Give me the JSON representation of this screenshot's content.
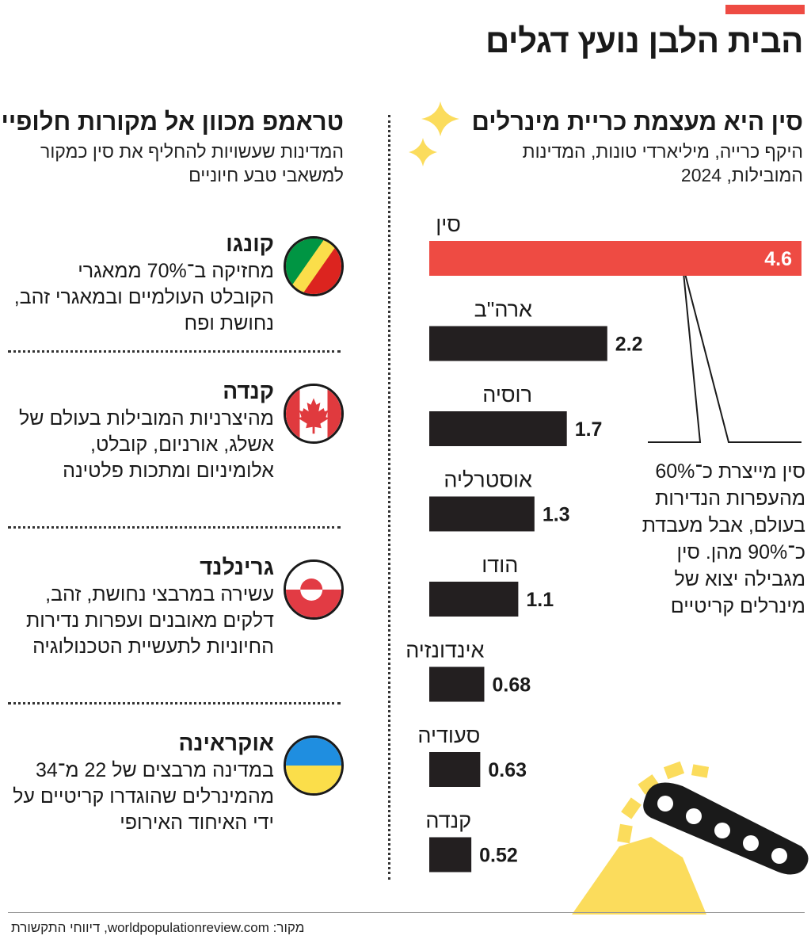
{
  "header": {
    "title": "הבית הלבן נועץ דגלים"
  },
  "chart_data": {
    "type": "bar",
    "title": "סין היא מעצמת כריית מינרלים",
    "subtitle": "היקף כרייה, מיליארדי טונות, המדינות המובילות, 2024",
    "categories": [
      "סין",
      "ארה\"ב",
      "רוסיה",
      "אוסטרליה",
      "הודו",
      "אינדונזיה",
      "סעודיה",
      "קנדה"
    ],
    "values": [
      4.6,
      2.2,
      1.7,
      1.3,
      1.1,
      0.68,
      0.63,
      0.52
    ],
    "value_labels": [
      "4.6",
      "2.2",
      "1.7",
      "1.3",
      "1.1",
      "0.68",
      "0.63",
      "0.52"
    ],
    "highlight_category": "סין",
    "colors": {
      "highlight": "#ee4b43",
      "bars": "#231f20"
    },
    "annotation": "סין מייצרת כ־60% מהעפרות הנדירות בעולם, אבל מעבדת כ־90% מהן. סין מגבילה יצוא של מינרלים קריטיים"
  },
  "alternatives": {
    "title": "טראמפ מכוון אל מקורות חלופיים",
    "subtitle": "המדינות שעשויות להחליף את סין כמקור למשאבי טבע חיוניים",
    "countries": [
      {
        "name": "קונגו",
        "flag": "congo-flag-icon",
        "description": "מחזיקה ב־70% ממאגרי הקובלט העולמיים ובמאגרי זהב, נחושת ופח"
      },
      {
        "name": "קנדה",
        "flag": "canada-flag-icon",
        "description": "מהיצרניות המובילות בעולם של אשלג, אורניום, קובלט, אלומיניום ומתכות פלטינה"
      },
      {
        "name": "גרינלנד",
        "flag": "greenland-flag-icon",
        "description": "עשירה במרבצי נחושת, זהב, דלקים מאובנים ועפרות נדירות החיוניות לתעשיית הטכנולוגיה"
      },
      {
        "name": "אוקראינה",
        "flag": "ukraine-flag-icon",
        "description": "במדינה מרבצים של 22 מ־34 מהמינרלים שהוגדרו קריטיים על ידי האיחוד האירופי"
      }
    ]
  },
  "source": "מקור: worldpopulationreview.com, דיווחי התקשורת",
  "decorations": [
    "sparkle-icon",
    "mining-excavator-icon"
  ]
}
